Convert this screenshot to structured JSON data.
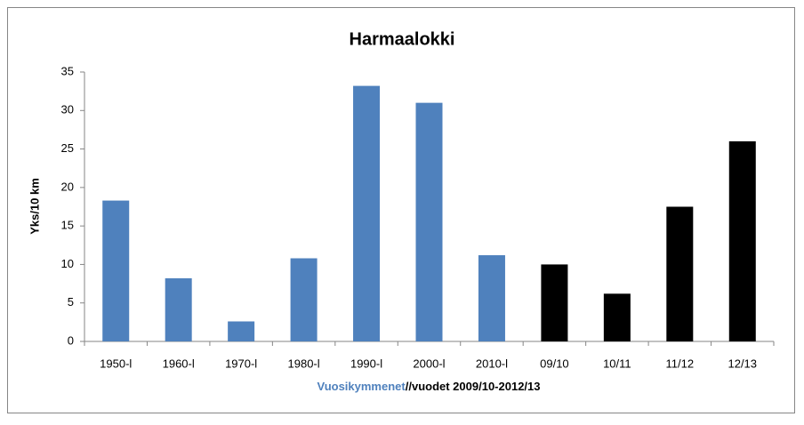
{
  "chart_data": {
    "type": "bar",
    "title": "Harmaalokki",
    "ylabel": "Yks/10 km",
    "xlabel": [
      "Vuosikymmenet",
      "//vuodet 2009/10-2012/13"
    ],
    "categories": [
      "1950-l",
      "1960-l",
      "1970-l",
      "1980-l",
      "1990-l",
      "2000-l",
      "2010-l",
      "09/10",
      "10/11",
      "11/12",
      "12/13"
    ],
    "values": [
      18.3,
      8.2,
      2.6,
      10.8,
      33.2,
      31.0,
      11.2,
      10.0,
      6.2,
      17.5,
      26.0
    ],
    "colors": [
      "#4f81bd",
      "#4f81bd",
      "#4f81bd",
      "#4f81bd",
      "#4f81bd",
      "#4f81bd",
      "#4f81bd",
      "#000000",
      "#000000",
      "#000000",
      "#000000"
    ],
    "ylim": [
      0,
      35
    ],
    "yticks": [
      0,
      5,
      10,
      15,
      20,
      25,
      30,
      35
    ],
    "grid": false
  }
}
